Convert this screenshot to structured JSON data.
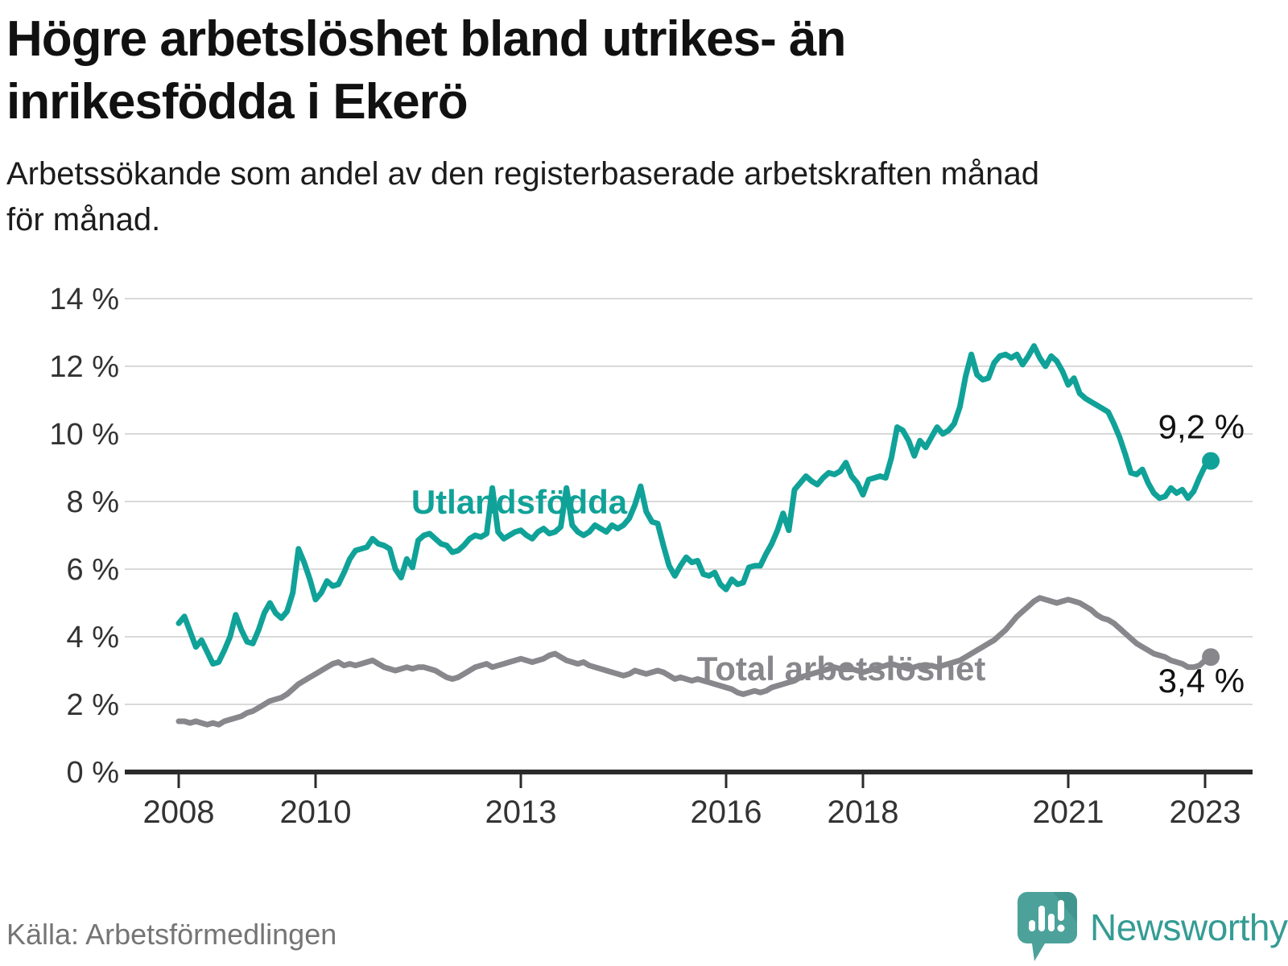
{
  "header": {
    "title_lines": [
      "Högre arbetslöshet bland utrikes- än",
      "inrikesfödda i Ekerö"
    ],
    "subtitle_lines": [
      "Arbetssökande som andel av den registerbaserade arbetskraften månad",
      "för månad."
    ]
  },
  "footer": {
    "source": "Källa: Arbetsförmedlingen",
    "brand": "Newsworthy"
  },
  "chart_data": {
    "type": "line",
    "title": "Högre arbetslöshet bland utrikes- än inrikesfödda i Ekerö",
    "subtitle": "Arbetssökande som andel av den registerbaserade arbetskraften månad för månad.",
    "source": "Källa: Arbetsförmedlingen",
    "unit": "%",
    "x_start_year": 2008,
    "x_resolution": "monthly",
    "x_ticks": [
      2008,
      2010,
      2013,
      2016,
      2018,
      2021,
      2023
    ],
    "y_ticks": [
      "0 %",
      "2 %",
      "4 %",
      "6 %",
      "8 %",
      "10 %",
      "12 %",
      "14 %"
    ],
    "y_tick_values": [
      0,
      2,
      4,
      6,
      8,
      10,
      12,
      14
    ],
    "ylim": [
      0,
      14
    ],
    "grid": true,
    "legend_position": "inline-labels",
    "colors": {
      "utlandsfodda": "#10a298",
      "total": "#87878c",
      "axis": "#2b2b2b",
      "grid": "#d9d9d9",
      "tick_label": "#333333",
      "value_label": "#111111"
    },
    "series": [
      {
        "id": "utlandsfodda",
        "name": "Utlandsfödda",
        "end_label": "9,2 %",
        "end_value": 9.2,
        "values": [
          4.4,
          4.6,
          4.15,
          3.7,
          3.9,
          3.55,
          3.2,
          3.25,
          3.6,
          4.0,
          4.65,
          4.2,
          3.85,
          3.8,
          4.2,
          4.7,
          5.0,
          4.7,
          4.55,
          4.75,
          5.3,
          6.6,
          6.2,
          5.7,
          5.1,
          5.3,
          5.65,
          5.5,
          5.55,
          5.9,
          6.3,
          6.55,
          6.6,
          6.65,
          6.9,
          6.75,
          6.7,
          6.6,
          6.0,
          5.75,
          6.3,
          6.05,
          6.85,
          7.0,
          7.05,
          6.9,
          6.75,
          6.7,
          6.5,
          6.55,
          6.7,
          6.9,
          7.0,
          6.95,
          7.05,
          8.4,
          7.1,
          6.9,
          7.0,
          7.1,
          7.15,
          7.0,
          6.9,
          7.1,
          7.2,
          7.05,
          7.1,
          7.25,
          8.4,
          7.3,
          7.1,
          7.0,
          7.1,
          7.3,
          7.2,
          7.1,
          7.3,
          7.2,
          7.3,
          7.5,
          7.9,
          8.45,
          7.7,
          7.4,
          7.35,
          6.7,
          6.1,
          5.8,
          6.1,
          6.35,
          6.2,
          6.25,
          5.85,
          5.8,
          5.9,
          5.55,
          5.4,
          5.7,
          5.55,
          5.6,
          6.05,
          6.1,
          6.1,
          6.45,
          6.75,
          7.15,
          7.65,
          7.15,
          8.35,
          8.55,
          8.75,
          8.6,
          8.5,
          8.7,
          8.85,
          8.8,
          8.9,
          9.15,
          8.75,
          8.55,
          8.2,
          8.65,
          8.7,
          8.75,
          8.7,
          9.3,
          10.2,
          10.1,
          9.8,
          9.35,
          9.8,
          9.6,
          9.9,
          10.2,
          10.0,
          10.1,
          10.3,
          10.8,
          11.7,
          12.35,
          11.75,
          11.6,
          11.65,
          12.1,
          12.3,
          12.35,
          12.25,
          12.35,
          12.05,
          12.3,
          12.6,
          12.25,
          12.0,
          12.3,
          12.15,
          11.85,
          11.45,
          11.65,
          11.2,
          11.05,
          10.95,
          10.85,
          10.75,
          10.65,
          10.3,
          9.9,
          9.4,
          8.85,
          8.8,
          8.95,
          8.55,
          8.25,
          8.1,
          8.15,
          8.4,
          8.25,
          8.35,
          8.1,
          8.3,
          8.7,
          9.05,
          9.2
        ]
      },
      {
        "id": "total",
        "name": "Total arbetslöshet",
        "end_label": "3,4 %",
        "end_value": 3.4,
        "values": [
          1.5,
          1.5,
          1.45,
          1.5,
          1.45,
          1.4,
          1.45,
          1.4,
          1.5,
          1.55,
          1.6,
          1.65,
          1.75,
          1.8,
          1.9,
          2.0,
          2.1,
          2.15,
          2.2,
          2.3,
          2.45,
          2.6,
          2.7,
          2.8,
          2.9,
          3.0,
          3.1,
          3.2,
          3.25,
          3.15,
          3.2,
          3.15,
          3.2,
          3.25,
          3.3,
          3.2,
          3.1,
          3.05,
          3.0,
          3.05,
          3.1,
          3.05,
          3.1,
          3.1,
          3.05,
          3.0,
          2.9,
          2.8,
          2.75,
          2.8,
          2.9,
          3.0,
          3.1,
          3.15,
          3.2,
          3.1,
          3.15,
          3.2,
          3.25,
          3.3,
          3.35,
          3.3,
          3.25,
          3.3,
          3.35,
          3.45,
          3.5,
          3.4,
          3.3,
          3.25,
          3.2,
          3.25,
          3.15,
          3.1,
          3.05,
          3.0,
          2.95,
          2.9,
          2.85,
          2.9,
          3.0,
          2.95,
          2.9,
          2.95,
          3.0,
          2.95,
          2.85,
          2.75,
          2.8,
          2.75,
          2.7,
          2.75,
          2.7,
          2.65,
          2.6,
          2.55,
          2.5,
          2.45,
          2.35,
          2.3,
          2.35,
          2.4,
          2.35,
          2.4,
          2.5,
          2.55,
          2.6,
          2.65,
          2.7,
          2.8,
          2.85,
          2.9,
          2.95,
          3.0,
          3.05,
          3.1,
          3.05,
          3.1,
          3.05,
          3.0,
          2.95,
          3.0,
          3.05,
          3.1,
          3.15,
          3.2,
          3.15,
          3.1,
          3.05,
          3.1,
          3.15,
          3.1,
          3.15,
          3.1,
          3.15,
          3.2,
          3.25,
          3.3,
          3.4,
          3.5,
          3.6,
          3.7,
          3.8,
          3.9,
          4.05,
          4.2,
          4.4,
          4.6,
          4.75,
          4.9,
          5.05,
          5.15,
          5.1,
          5.05,
          5.0,
          5.05,
          5.1,
          5.05,
          5.0,
          4.9,
          4.8,
          4.65,
          4.55,
          4.5,
          4.4,
          4.25,
          4.1,
          3.95,
          3.8,
          3.7,
          3.6,
          3.5,
          3.45,
          3.4,
          3.3,
          3.25,
          3.2,
          3.1,
          3.1,
          3.15,
          3.3,
          3.4
        ]
      }
    ]
  }
}
